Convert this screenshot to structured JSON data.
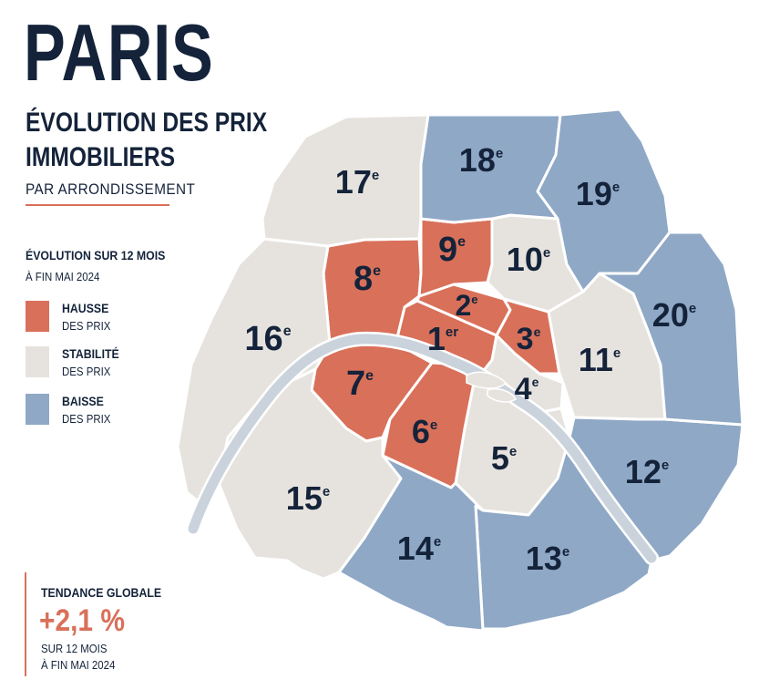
{
  "header": {
    "title": "PARIS",
    "subtitle_line1": "ÉVOLUTION DES PRIX",
    "subtitle_line2": "IMMOBILIERS",
    "subsubtitle": "PAR ARRONDISSEMENT"
  },
  "legend": {
    "title": "ÉVOLUTION SUR 12 MOIS",
    "subtitle": "À FIN MAI 2024",
    "items": [
      {
        "label": "HAUSSE",
        "sublabel": "DES PRIX",
        "color": "#d9705a"
      },
      {
        "label": "STABILITÉ",
        "sublabel": "DES PRIX",
        "color": "#e6e3de"
      },
      {
        "label": "BAISSE",
        "sublabel": "DES PRIX",
        "color": "#8fa8c6"
      }
    ]
  },
  "trend": {
    "title": "TENDANCE GLOBALE",
    "value": "+2,1 %",
    "sub_line1": "SUR 12 MOIS",
    "sub_line2": "À FIN MAI 2024"
  },
  "colors": {
    "hausse": "#d9705a",
    "stabilite": "#e6e3de",
    "baisse": "#8fa8c6",
    "seine": "#cad3dc",
    "text": "#14233a"
  },
  "arrondissements": [
    {
      "num": "1",
      "sup": "er",
      "trend": "hausse"
    },
    {
      "num": "2",
      "sup": "e",
      "trend": "hausse"
    },
    {
      "num": "3",
      "sup": "e",
      "trend": "hausse"
    },
    {
      "num": "4",
      "sup": "e",
      "trend": "stabilite"
    },
    {
      "num": "5",
      "sup": "e",
      "trend": "stabilite"
    },
    {
      "num": "6",
      "sup": "e",
      "trend": "hausse"
    },
    {
      "num": "7",
      "sup": "e",
      "trend": "hausse"
    },
    {
      "num": "8",
      "sup": "e",
      "trend": "hausse"
    },
    {
      "num": "9",
      "sup": "e",
      "trend": "hausse"
    },
    {
      "num": "10",
      "sup": "e",
      "trend": "stabilite"
    },
    {
      "num": "11",
      "sup": "e",
      "trend": "stabilite"
    },
    {
      "num": "12",
      "sup": "e",
      "trend": "baisse"
    },
    {
      "num": "13",
      "sup": "e",
      "trend": "baisse"
    },
    {
      "num": "14",
      "sup": "e",
      "trend": "baisse"
    },
    {
      "num": "15",
      "sup": "e",
      "trend": "stabilite"
    },
    {
      "num": "16",
      "sup": "e",
      "trend": "stabilite"
    },
    {
      "num": "17",
      "sup": "e",
      "trend": "stabilite"
    },
    {
      "num": "18",
      "sup": "e",
      "trend": "baisse"
    },
    {
      "num": "19",
      "sup": "e",
      "trend": "baisse"
    },
    {
      "num": "20",
      "sup": "e",
      "trend": "baisse"
    }
  ]
}
